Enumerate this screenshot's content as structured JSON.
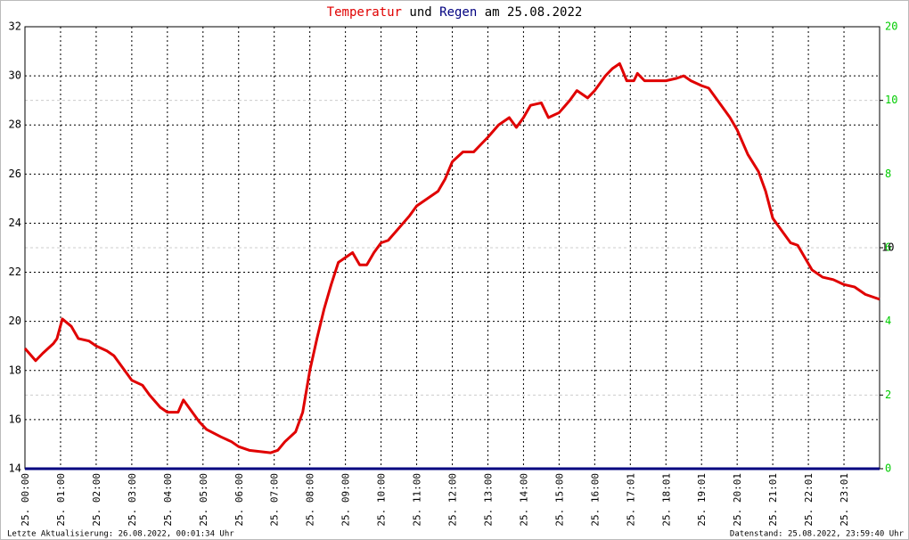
{
  "chart_data": {
    "type": "line",
    "title_parts": [
      {
        "text": "Temperatur",
        "color": "#e00000"
      },
      {
        "text": "und",
        "color": "#000000"
      },
      {
        "text": "Regen",
        "color": "#000080"
      },
      {
        "text": "am 25.08.2022",
        "color": "#000000"
      }
    ],
    "xlim": [
      0,
      24
    ],
    "xticks": [
      {
        "value": 0,
        "label": "25. 00:00"
      },
      {
        "value": 1,
        "label": "25. 01:00"
      },
      {
        "value": 2,
        "label": "25. 02:00"
      },
      {
        "value": 3,
        "label": "25. 03:00"
      },
      {
        "value": 4,
        "label": "25. 04:00"
      },
      {
        "value": 5,
        "label": "25. 05:00"
      },
      {
        "value": 6,
        "label": "25. 06:00"
      },
      {
        "value": 7,
        "label": "25. 07:00"
      },
      {
        "value": 8,
        "label": "25. 08:00"
      },
      {
        "value": 9,
        "label": "25. 09:00"
      },
      {
        "value": 10,
        "label": "25. 10:00"
      },
      {
        "value": 11,
        "label": "25. 11:00"
      },
      {
        "value": 12,
        "label": "25. 12:00"
      },
      {
        "value": 13,
        "label": "25. 13:00"
      },
      {
        "value": 14,
        "label": "25. 14:00"
      },
      {
        "value": 15,
        "label": "25. 15:00"
      },
      {
        "value": 16,
        "label": "25. 16:00"
      },
      {
        "value": 17,
        "label": "25. 17:01"
      },
      {
        "value": 18,
        "label": "25. 18:01"
      },
      {
        "value": 19,
        "label": "25. 19:01"
      },
      {
        "value": 20,
        "label": "25. 20:01"
      },
      {
        "value": 21,
        "label": "25. 21:01"
      },
      {
        "value": 22,
        "label": "25. 22:01"
      },
      {
        "value": 23,
        "label": "25. 23:01"
      }
    ],
    "ylim": [
      14,
      32
    ],
    "yticks": [
      14,
      16,
      18,
      20,
      22,
      24,
      26,
      28,
      30,
      32
    ],
    "y2lim": [
      0,
      12
    ],
    "y2ticks": [
      0,
      2,
      4,
      6,
      8,
      10
    ],
    "y2_color": "#00cc00",
    "y2_extra_labels": [
      "20",
      "10"
    ],
    "grid": true,
    "series": [
      {
        "name": "Temperatur",
        "color": "#e00000",
        "x": [
          0,
          0.3,
          0.5,
          0.8,
          0.9,
          1.05,
          1.3,
          1.5,
          1.8,
          2.0,
          2.3,
          2.5,
          2.8,
          3.0,
          3.3,
          3.5,
          3.8,
          4.0,
          4.3,
          4.45,
          4.6,
          4.9,
          5.1,
          5.5,
          5.8,
          6.0,
          6.3,
          6.6,
          6.9,
          7.1,
          7.3,
          7.6,
          7.8,
          8.0,
          8.2,
          8.4,
          8.6,
          8.8,
          9.0,
          9.2,
          9.4,
          9.6,
          9.8,
          10.0,
          10.2,
          10.5,
          10.8,
          11.0,
          11.3,
          11.6,
          11.8,
          12.0,
          12.3,
          12.6,
          12.8,
          13.0,
          13.3,
          13.6,
          13.8,
          14.0,
          14.2,
          14.5,
          14.7,
          15.0,
          15.3,
          15.5,
          15.8,
          16.0,
          16.3,
          16.5,
          16.7,
          16.9,
          17.1,
          17.2,
          17.4,
          17.7,
          18.0,
          18.3,
          18.5,
          18.7,
          19.0,
          19.2,
          19.5,
          19.8,
          20.0,
          20.3,
          20.6,
          20.8,
          21.0,
          21.3,
          21.5,
          21.7,
          21.9,
          22.1,
          22.4,
          22.7,
          23.0,
          23.3,
          23.6,
          23.8,
          24.0
        ],
        "values": [
          18.9,
          18.4,
          18.7,
          19.1,
          19.3,
          20.1,
          19.8,
          19.3,
          19.2,
          19.0,
          18.8,
          18.6,
          18.0,
          17.6,
          17.4,
          17.0,
          16.5,
          16.3,
          16.3,
          16.8,
          16.5,
          15.9,
          15.6,
          15.3,
          15.1,
          14.9,
          14.75,
          14.7,
          14.65,
          14.75,
          15.1,
          15.5,
          16.3,
          18.0,
          19.3,
          20.5,
          21.5,
          22.4,
          22.6,
          22.8,
          22.3,
          22.3,
          22.8,
          23.2,
          23.3,
          23.8,
          24.3,
          24.7,
          25.0,
          25.3,
          25.8,
          26.5,
          26.9,
          26.9,
          27.2,
          27.5,
          28.0,
          28.3,
          27.9,
          28.3,
          28.8,
          28.9,
          28.3,
          28.5,
          29.0,
          29.4,
          29.1,
          29.4,
          30.0,
          30.3,
          30.5,
          29.8,
          29.8,
          30.1,
          29.8,
          29.8,
          29.8,
          29.9,
          30.0,
          29.8,
          29.6,
          29.5,
          28.9,
          28.3,
          27.8,
          26.8,
          26.1,
          25.3,
          24.2,
          23.6,
          23.2,
          23.1,
          22.6,
          22.1,
          21.8,
          21.7,
          21.5,
          21.4,
          21.1,
          21.0,
          20.9
        ]
      },
      {
        "name": "Regen",
        "color": "#000080",
        "axis": "y2",
        "x": [
          0,
          24
        ],
        "values": [
          0,
          0
        ]
      }
    ],
    "footer_left": "Letzte Aktualisierung: 26.08.2022, 00:01:34 Uhr",
    "footer_right": "Datenstand: 25.08.2022, 23:59:40 Uhr"
  }
}
